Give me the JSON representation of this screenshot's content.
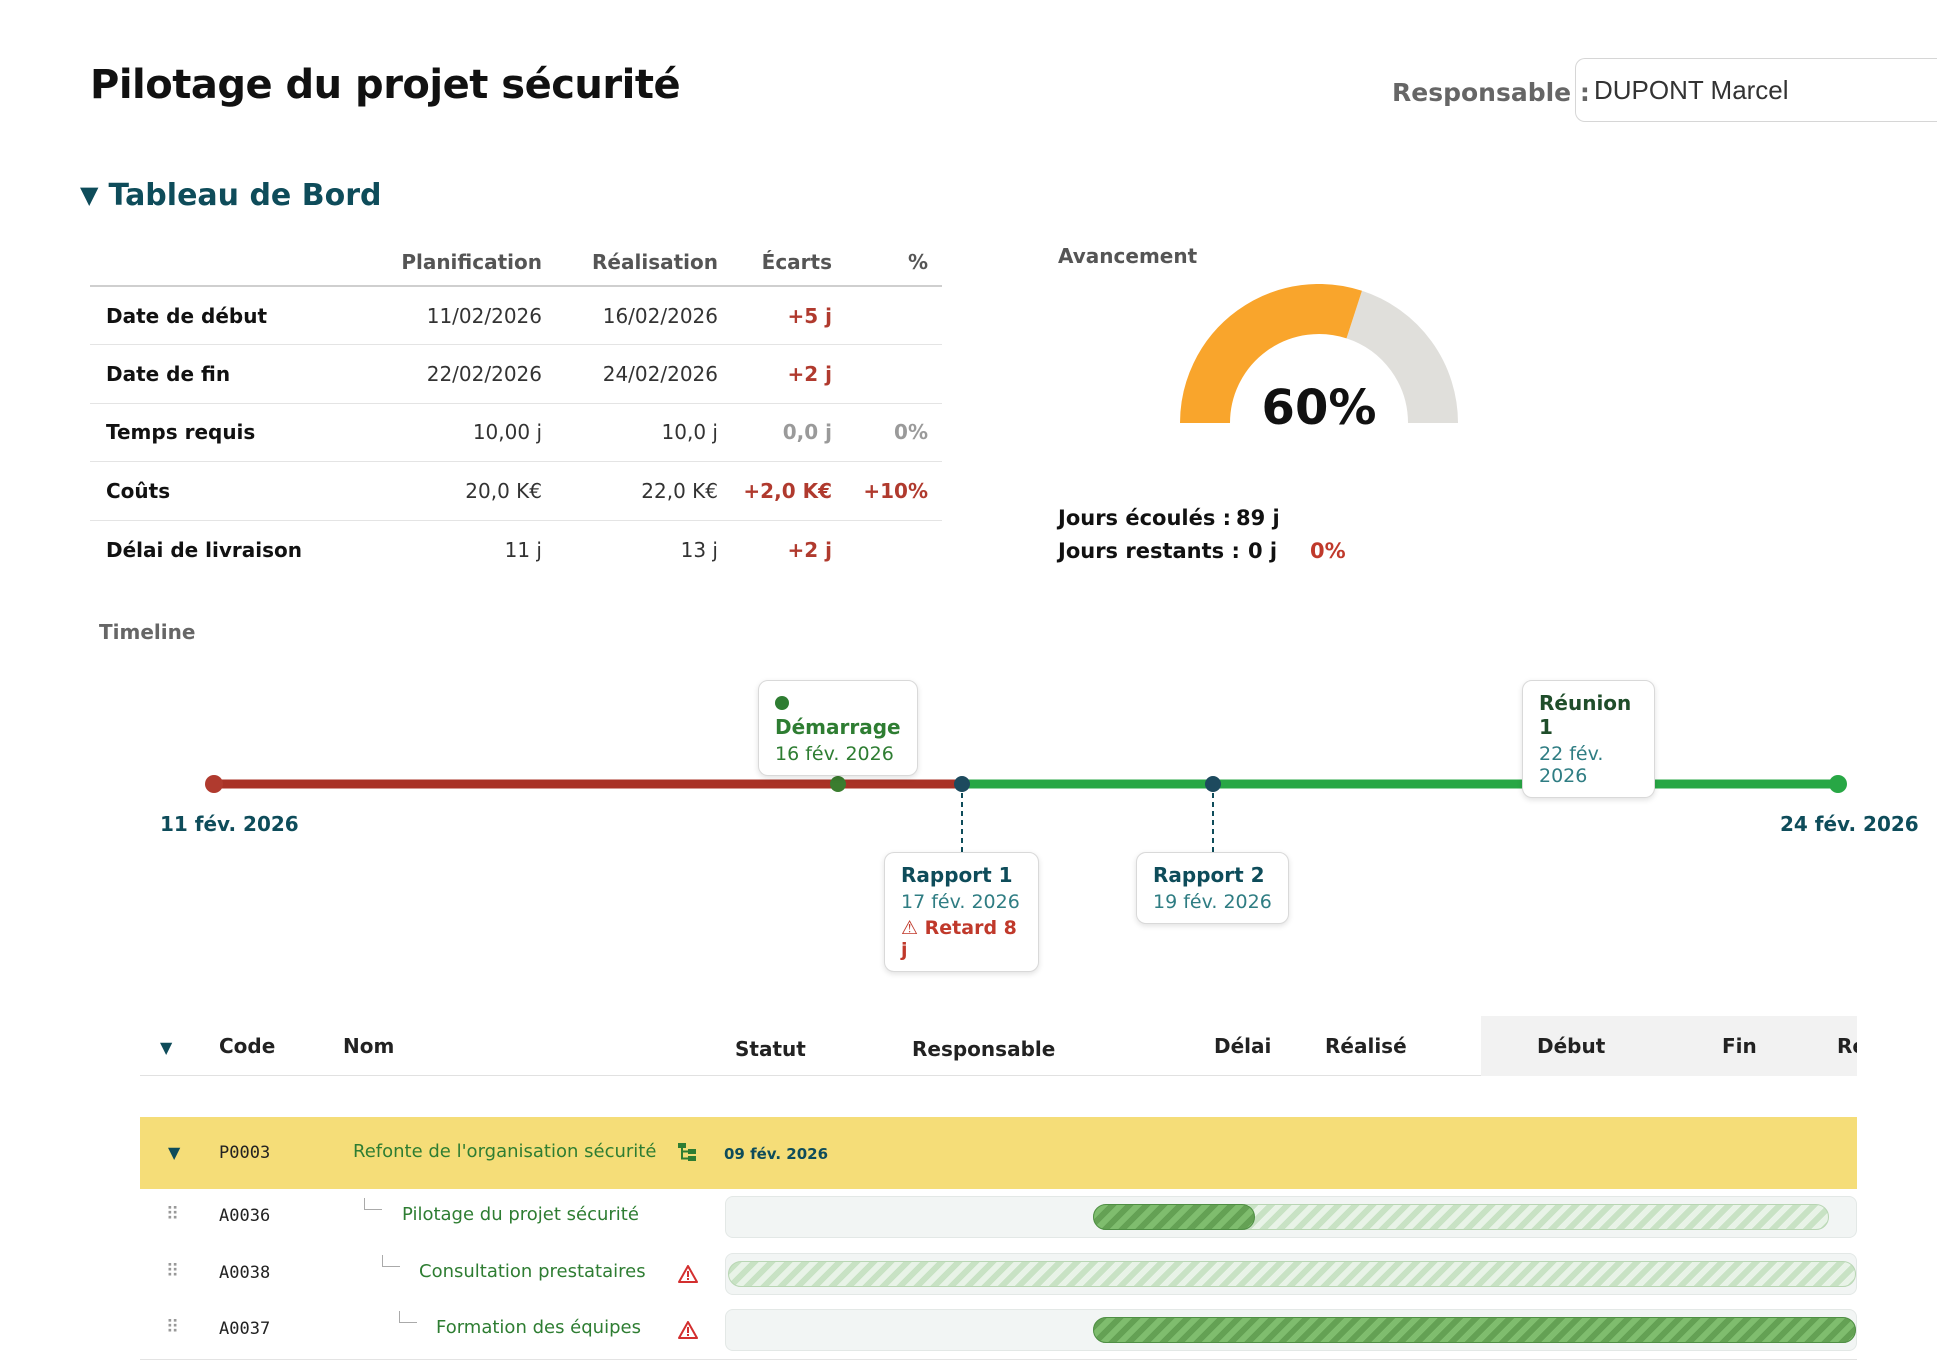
{
  "header": {
    "title": "Pilotage du projet sécurité",
    "responsable_label": "Responsable :",
    "responsable_value": "DUPONT Marcel"
  },
  "dashboard": {
    "section_title": "Tableau de Bord",
    "columns": [
      "Planification",
      "Réalisation",
      "Écarts",
      "%"
    ],
    "rows": [
      {
        "label": "Date de début",
        "planif": "11/02/2026",
        "real": "16/02/2026",
        "ecart": "+5 j",
        "pct": ""
      },
      {
        "label": "Date de fin",
        "planif": "22/02/2026",
        "real": "24/02/2026",
        "ecart": "+2 j",
        "pct": ""
      },
      {
        "label": "Temps requis",
        "planif": "10,00 j",
        "real": "10,0 j",
        "ecart": "0,0 j",
        "pct": "0%"
      },
      {
        "label": "Coûts",
        "planif": "20,0 K€",
        "real": "22,0 K€",
        "ecart": "+2,0 K€",
        "pct": "+10%"
      },
      {
        "label": "Délai de livraison",
        "planif": "11 j",
        "real": "13 j",
        "ecart": "+2 j",
        "pct": ""
      }
    ]
  },
  "avancement": {
    "label": "Avancement",
    "percent_value": 60,
    "percent_label": "60%",
    "colors": {
      "done": "#f9a52c",
      "remaining": "#e0dfdb"
    },
    "elapsed_label": "Jours écoulés :",
    "elapsed_value": "89 j",
    "remaining_label": "Jours restants :",
    "remaining_value": "0 j",
    "remaining_pct": "0%"
  },
  "timeline": {
    "label": "Timeline",
    "start_label": "11 fév. 2026",
    "end_label": "24 fév. 2026",
    "colors": {
      "late": "#a93226",
      "on_track": "#28a745"
    },
    "milestones": [
      {
        "title": "Démarrage",
        "date": "16 fév. 2026",
        "warning": ""
      },
      {
        "title": "Rapport 1",
        "date": "17 fév. 2026",
        "warning": "⚠ Retard 8 j"
      },
      {
        "title": "Rapport 2",
        "date": "19 fév. 2026",
        "warning": ""
      },
      {
        "title": "Réunion 1",
        "date": "22 fév. 2026",
        "warning": ""
      }
    ]
  },
  "task_grid": {
    "columns": {
      "code": "Code",
      "nom": "Nom",
      "statut": "Statut",
      "responsable": "Responsable",
      "delai": "Délai",
      "realise": "Réalisé",
      "debut": "Début",
      "fin": "Fin",
      "re": "Re"
    },
    "group": {
      "code": "P0003",
      "name": "Refonte de l'organisation sécurité",
      "date": "09 fév. 2026",
      "icon": "org-chart-icon"
    },
    "tasks": [
      {
        "code": "A0036",
        "name": "Pilotage du projet sécurité",
        "warning": false,
        "progress": 0.22
      },
      {
        "code": "A0038",
        "name": "Consultation prestataires",
        "warning": true,
        "progress": 0
      },
      {
        "code": "A0037",
        "name": "Formation des équipes",
        "warning": true,
        "progress": 1
      }
    ]
  }
}
